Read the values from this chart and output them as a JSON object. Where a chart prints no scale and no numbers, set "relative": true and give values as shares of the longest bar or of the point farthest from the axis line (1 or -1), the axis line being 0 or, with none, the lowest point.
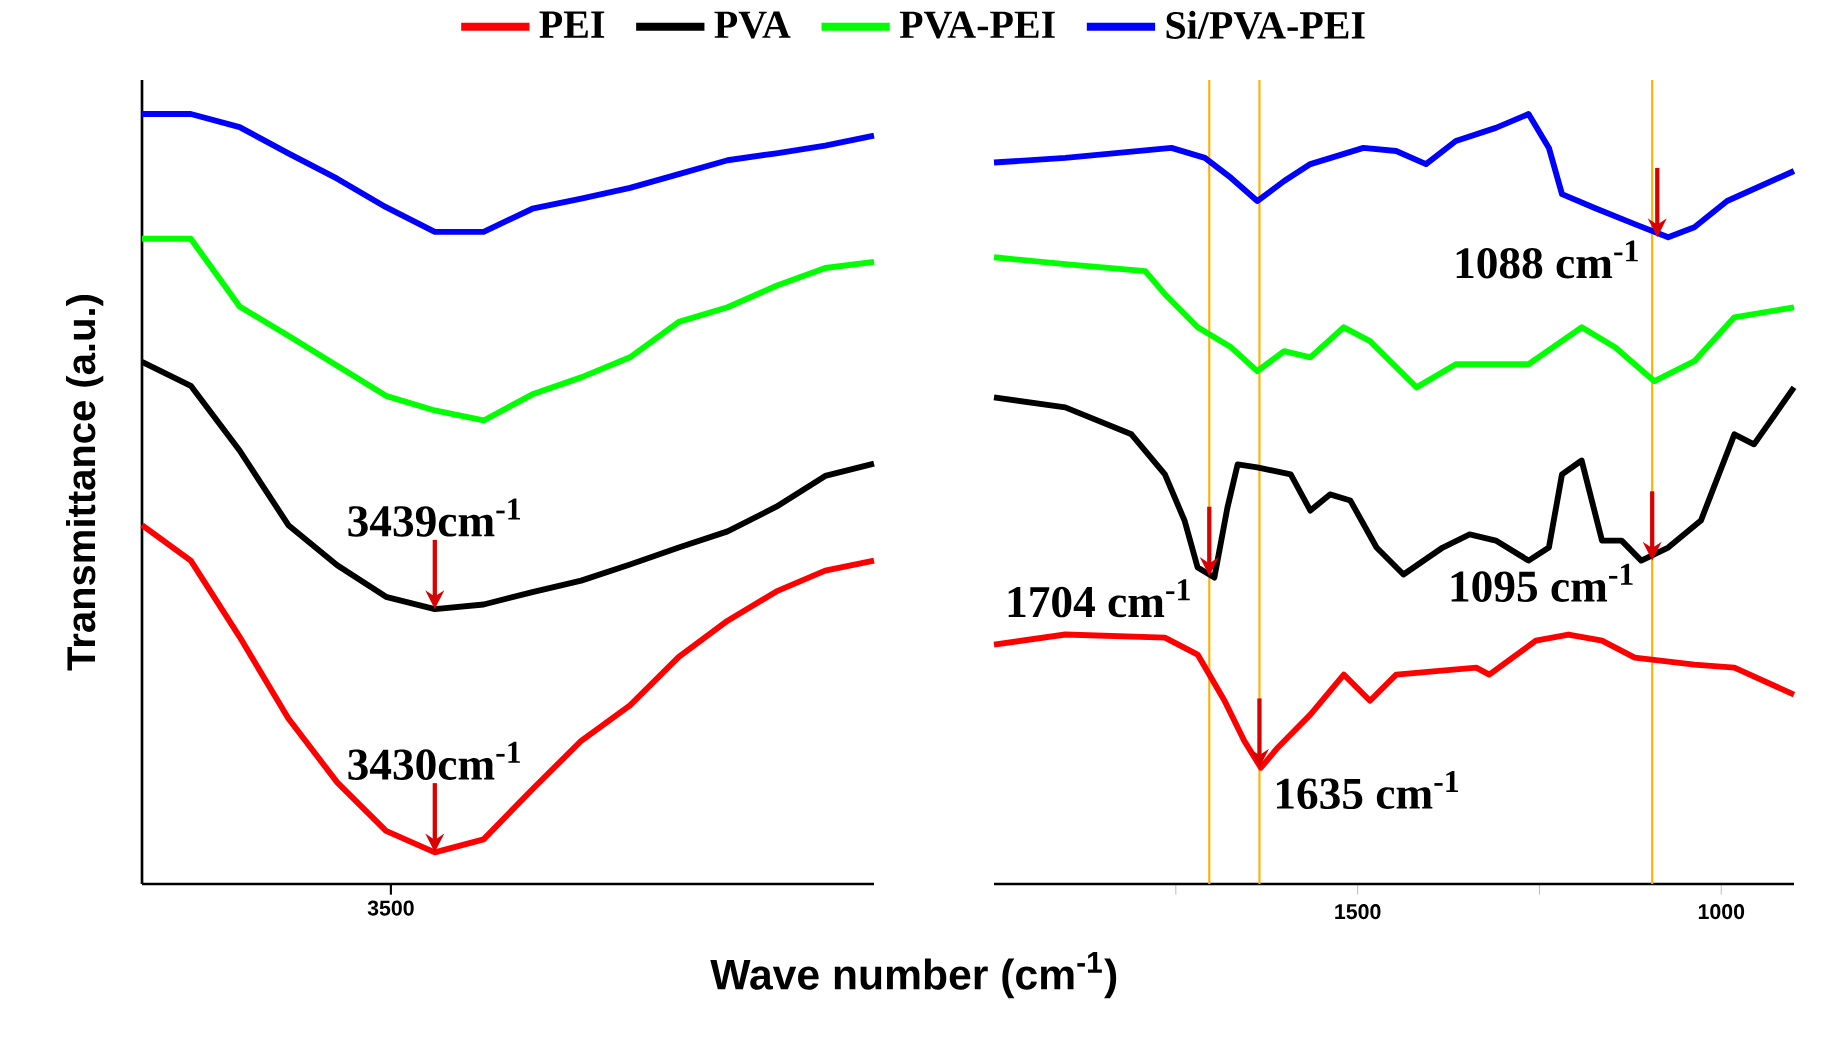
{
  "chart_data": [
    {
      "type": "line",
      "relative": true,
      "xlabel": "Wave number (cm$^{-1}$)",
      "ylabel": "Transmittance (a.u.)",
      "legend": "top",
      "categories": [
        null,
        null,
        null,
        null,
        null,
        null,
        null,
        null,
        null,
        null,
        null,
        null,
        null,
        null,
        null,
        null
      ],
      "series": [
        {
          "name": "PEI",
          "color": "#ff0000",
          "values": [
            0.466,
            0.42,
            0.321,
            0.215,
            0.132,
            0.069,
            0.041,
            0.058,
            0.123,
            0.186,
            0.232,
            0.295,
            0.342,
            0.38,
            0.407,
            0.42
          ]
        },
        {
          "name": "PVA",
          "color": "#000000",
          "values": [
            0.678,
            0.647,
            0.563,
            0.466,
            0.414,
            0.373,
            0.357,
            0.363,
            0.379,
            0.394,
            0.415,
            0.437,
            0.458,
            0.49,
            0.53,
            0.546
          ]
        },
        {
          "name": "PVA-PEI",
          "color": "#00ff00",
          "values": [
            0.838,
            0.838,
            0.75,
            0.712,
            0.673,
            0.634,
            0.615,
            0.602,
            0.636,
            0.658,
            0.684,
            0.73,
            0.749,
            0.777,
            0.8,
            0.808
          ]
        },
        {
          "name": "Si/PVA-PEI",
          "color": "#0000ff",
          "values": [
            1.0,
            1.0,
            0.983,
            0.949,
            0.916,
            0.879,
            0.847,
            0.847,
            0.877,
            0.89,
            0.904,
            0.922,
            0.94,
            0.949,
            0.959,
            0.972
          ]
        }
      ],
      "annotations": [
        {
          "text": "3439cm$^{-1}$",
          "y": 0.357
        },
        {
          "text": "3430cm$^{-1}$",
          "y": 0.041
        },
        "3500"
      ]
    },
    {
      "type": "line",
      "relative": true,
      "xlim": [
        2000,
        900
      ],
      "xticks": [
        {
          "value": 1750,
          "label": null
        },
        1500,
        {
          "value": 1250,
          "label": null
        },
        1000
      ],
      "series": [
        {
          "color": "#ff0000",
          "x": [
            2000,
            1902,
            1765,
            1720,
            1683,
            1656,
            1633,
            1610,
            1565,
            1519,
            1483,
            1447,
            1337,
            1319,
            1255,
            1210,
            1164,
            1119,
            1037,
            982,
            900
          ],
          "values": [
            0.311,
            0.324,
            0.32,
            0.298,
            0.238,
            0.186,
            0.151,
            0.177,
            0.22,
            0.272,
            0.238,
            0.272,
            0.281,
            0.272,
            0.316,
            0.324,
            0.316,
            0.294,
            0.285,
            0.281,
            0.246
          ]
        },
        {
          "color": "#000000",
          "x": [
            2000,
            1902,
            1811,
            1765,
            1738,
            1720,
            1697,
            1679,
            1665,
            1638,
            1592,
            1565,
            1538,
            1510,
            1474,
            1437,
            1383,
            1346,
            1310,
            1265,
            1237,
            1219,
            1192,
            1164,
            1137,
            1110,
            1073,
            1028,
            982,
            955,
            900
          ],
          "values": [
            0.632,
            0.619,
            0.584,
            0.532,
            0.472,
            0.411,
            0.398,
            0.489,
            0.545,
            0.541,
            0.532,
            0.485,
            0.506,
            0.498,
            0.437,
            0.402,
            0.437,
            0.454,
            0.446,
            0.42,
            0.437,
            0.532,
            0.55,
            0.446,
            0.446,
            0.42,
            0.437,
            0.472,
            0.584,
            0.571,
            0.645
          ]
        },
        {
          "color": "#00ff00",
          "x": [
            2000,
            1902,
            1792,
            1765,
            1720,
            1674,
            1638,
            1601,
            1565,
            1519,
            1483,
            1419,
            1365,
            1265,
            1192,
            1146,
            1092,
            1037,
            982,
            900
          ],
          "values": [
            0.814,
            0.805,
            0.796,
            0.766,
            0.723,
            0.697,
            0.666,
            0.692,
            0.684,
            0.723,
            0.705,
            0.645,
            0.675,
            0.675,
            0.723,
            0.697,
            0.653,
            0.679,
            0.736,
            0.749
          ]
        },
        {
          "color": "#0000ff",
          "x": [
            2000,
            1902,
            1756,
            1710,
            1674,
            1638,
            1601,
            1565,
            1492,
            1447,
            1406,
            1365,
            1310,
            1265,
            1237,
            1219,
            1174,
            1119,
            1073,
            1037,
            992,
            900
          ],
          "values": [
            0.937,
            0.943,
            0.956,
            0.943,
            0.917,
            0.887,
            0.913,
            0.935,
            0.956,
            0.952,
            0.935,
            0.965,
            0.982,
            1.0,
            0.956,
            0.896,
            0.878,
            0.857,
            0.84,
            0.853,
            0.887,
            0.926
          ]
        }
      ],
      "ref_lines": [
        {
          "axis": "x",
          "value": 1704,
          "color": "#ffb000"
        },
        {
          "axis": "x",
          "value": 1635,
          "color": "#ffb000"
        },
        {
          "axis": "x",
          "value": 1095,
          "color": "#ffb000"
        }
      ],
      "annotations": [
        {
          "text": "1704 cm$^{-1}$",
          "x": 1704,
          "y": 0.4
        },
        {
          "text": "1635 cm$^{-1}$",
          "x": 1635,
          "y": 0.151
        },
        {
          "text": "1095 cm$^{-1}$",
          "x": 1095,
          "y": 0.42
        },
        {
          "text": "1088 cm$^{-1}$",
          "x": 1088,
          "y": 0.84
        }
      ]
    }
  ]
}
